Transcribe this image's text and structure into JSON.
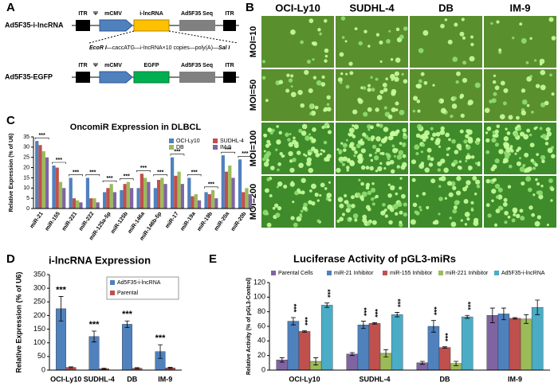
{
  "panels": {
    "A": {
      "label": "A",
      "constructs": [
        {
          "name": "Ad5F35-i-lncRNA",
          "itr": "ITR",
          "psi": "Ψ",
          "promoter": "mCMV",
          "insert": "i-lncRNA",
          "seq": "Ad5F35 Seq",
          "itr2": "ITR"
        },
        {
          "name": "Ad5F35-EGFP",
          "itr": "ITR",
          "psi": "Ψ",
          "promoter": "mCMV",
          "insert": "EGFP",
          "seq": "Ad5F35 Seq",
          "itr2": "ITR"
        }
      ],
      "insert_detail": {
        "start": "EcoR I",
        "middle": "—caccATG—i-lncRNA×10 copies—poly(A)—",
        "end": "Sal I"
      }
    },
    "B": {
      "label": "B",
      "columns": [
        "OCI-Ly10",
        "SUDHL-4",
        "DB",
        "IM-9"
      ],
      "rows": [
        "MOI=10",
        "MOI=50",
        "MOI=100",
        "MOI=200"
      ]
    },
    "C": {
      "label": "C"
    },
    "D": {
      "label": "D"
    },
    "E": {
      "label": "E"
    }
  },
  "chart_data": [
    {
      "type": "bar",
      "title": "OncomiR Expression in DLBCL",
      "y_label": "Relative Expression (% of U6)",
      "categories": [
        "miR-21",
        "miR-155",
        "miR-221",
        "miR-222",
        "miR-125a-5p",
        "miR-125b",
        "miR-146a",
        "miR-146b-5p",
        "miR-17",
        "miR-19a",
        "miR-19b",
        "miR-20a",
        "miR-20b"
      ],
      "series": [
        {
          "name": "OCI-Ly10",
          "color": "#4f81bd",
          "values": [
            33,
            21,
            15,
            15,
            8,
            9,
            10,
            10,
            25,
            15,
            8,
            26,
            24
          ]
        },
        {
          "name": "SUDHL-4",
          "color": "#c0504d",
          "values": [
            31,
            20,
            5,
            5,
            10,
            12,
            17,
            14,
            16,
            6,
            7,
            18,
            8
          ]
        },
        {
          "name": "DB",
          "color": "#9bbb59",
          "values": [
            28,
            13,
            4,
            5,
            12,
            13,
            15,
            15,
            18,
            7,
            9,
            21,
            10
          ]
        },
        {
          "name": "IM-9",
          "color": "#8064a2",
          "values": [
            25,
            10,
            3,
            3,
            8,
            10,
            13,
            12,
            12,
            4,
            5,
            15,
            7
          ]
        }
      ],
      "annotations": [
        "***",
        "***",
        "***",
        "***",
        "***",
        "***",
        "***",
        "***",
        "***",
        "***",
        "***",
        "***",
        "***"
      ],
      "ylim": [
        0,
        35
      ],
      "yticks": [
        0,
        5,
        10,
        15,
        20,
        25,
        30,
        35
      ]
    },
    {
      "type": "bar",
      "title": "i-lncRNA Expression",
      "y_label": "Relative Expression (% of U6)",
      "categories": [
        "OCI-Ly10",
        "SUDHL-4",
        "DB",
        "IM-9"
      ],
      "series": [
        {
          "name": "Ad5F35-i-lncRNA",
          "color": "#4f81bd",
          "values": [
            225,
            123,
            168,
            68
          ],
          "errors": [
            45,
            20,
            12,
            25
          ],
          "annotations": [
            "***",
            "***",
            "***",
            "***"
          ]
        },
        {
          "name": "Parental",
          "color": "#c0504d",
          "values": [
            10,
            5,
            7,
            8
          ],
          "errors": [
            2,
            2,
            2,
            2
          ]
        }
      ],
      "ylim": [
        0,
        350
      ],
      "yticks": [
        0,
        50,
        100,
        150,
        200,
        250,
        300,
        350
      ]
    },
    {
      "type": "bar",
      "title": "Luciferase Activity of pGL3-miRs",
      "y_label": "Relative Activity (% of pGL3-Control)",
      "categories": [
        "OCI-Ly10",
        "SUDHL-4",
        "DB",
        "IM-9"
      ],
      "series": [
        {
          "name": "Parental Cells",
          "color": "#8064a2",
          "values": [
            14,
            22,
            10,
            75
          ],
          "errors": [
            3,
            2,
            2,
            10
          ]
        },
        {
          "name": "miR-21 Inhibitor",
          "color": "#4f81bd",
          "values": [
            67,
            62,
            60,
            77
          ],
          "errors": [
            5,
            5,
            8,
            8
          ],
          "annotations": [
            "***",
            "***",
            "***",
            null
          ]
        },
        {
          "name": "miR-155 Inhibitor",
          "color": "#c0504d",
          "values": [
            53,
            64,
            31,
            71
          ],
          "errors": [
            1,
            1,
            1,
            1
          ],
          "annotations": [
            "***",
            "***",
            "***",
            null
          ]
        },
        {
          "name": "miR-221 Inhibitor",
          "color": "#9bbb59",
          "values": [
            12,
            23,
            9,
            70
          ],
          "errors": [
            5,
            5,
            3,
            6
          ]
        },
        {
          "name": "Ad5F35-i-lncRNA",
          "color": "#4bacc6",
          "values": [
            89,
            76,
            73,
            86
          ],
          "errors": [
            3,
            3,
            2,
            10
          ],
          "annotations": [
            "***",
            "***",
            "***",
            null
          ]
        }
      ],
      "ylim": [
        0,
        120
      ],
      "yticks": [
        0,
        20,
        40,
        60,
        80,
        100,
        120
      ]
    }
  ]
}
